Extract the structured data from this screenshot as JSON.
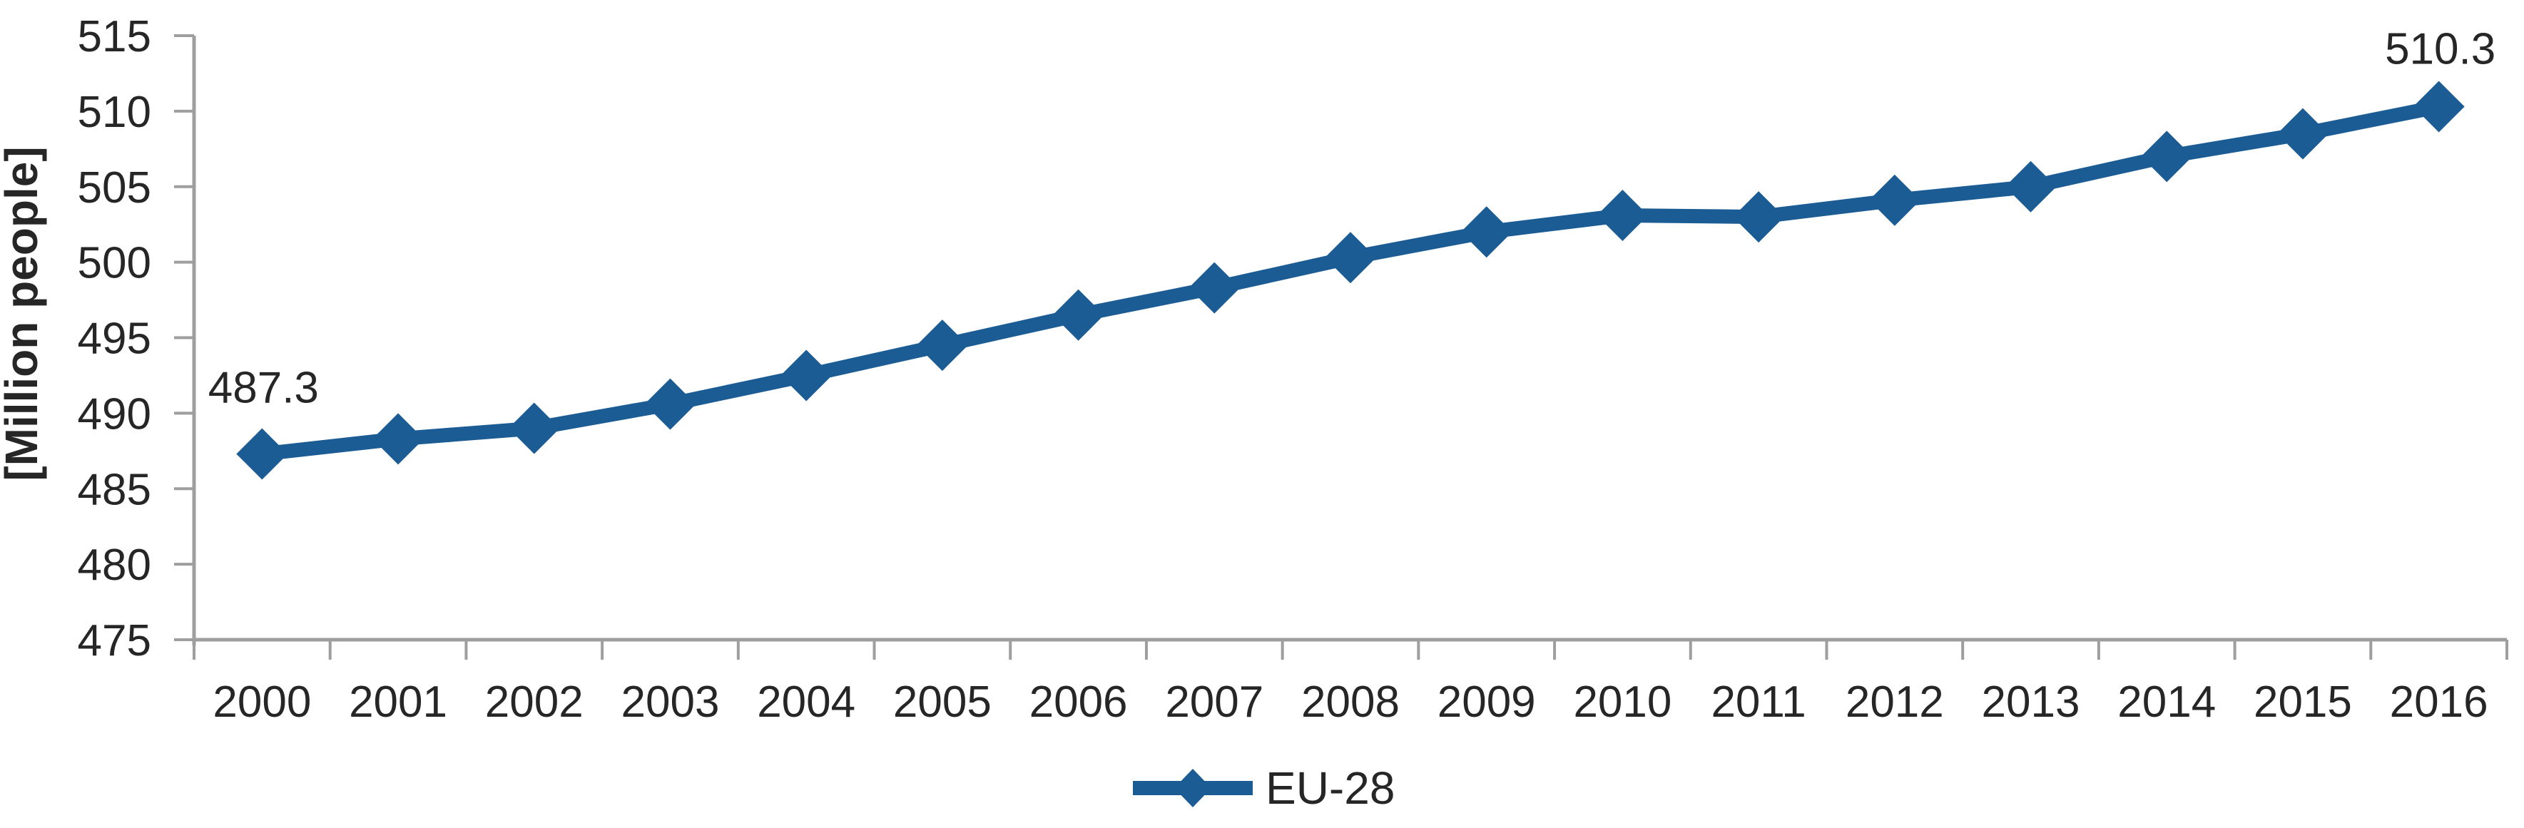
{
  "chart_data": {
    "type": "line",
    "title": "",
    "x": [
      "2000",
      "2001",
      "2002",
      "2003",
      "2004",
      "2005",
      "2006",
      "2007",
      "2008",
      "2009",
      "2010",
      "2011",
      "2012",
      "2013",
      "2014",
      "2015",
      "2016"
    ],
    "series": [
      {
        "name": "EU-28",
        "values": [
          487.3,
          488.3,
          489.0,
          490.6,
          492.5,
          494.5,
          496.5,
          498.3,
          500.3,
          502.0,
          503.1,
          503.0,
          504.1,
          505.0,
          507.0,
          508.5,
          510.3
        ]
      }
    ],
    "xlabel": "",
    "ylabel": "[Million people]",
    "ylim": [
      475,
      515
    ],
    "ytick_step": 5,
    "grid": false,
    "marker": "diamond",
    "legend_position": "bottom-center",
    "point_labels": {
      "first": "487.3",
      "last": "510.3"
    }
  },
  "legend": {
    "items": [
      {
        "label": "EU-28",
        "marker": "diamond-on-line"
      }
    ]
  },
  "colors": {
    "series": "#1b5c94",
    "axis": "#9e9e9e",
    "text": "#262626",
    "background": "#ffffff"
  }
}
